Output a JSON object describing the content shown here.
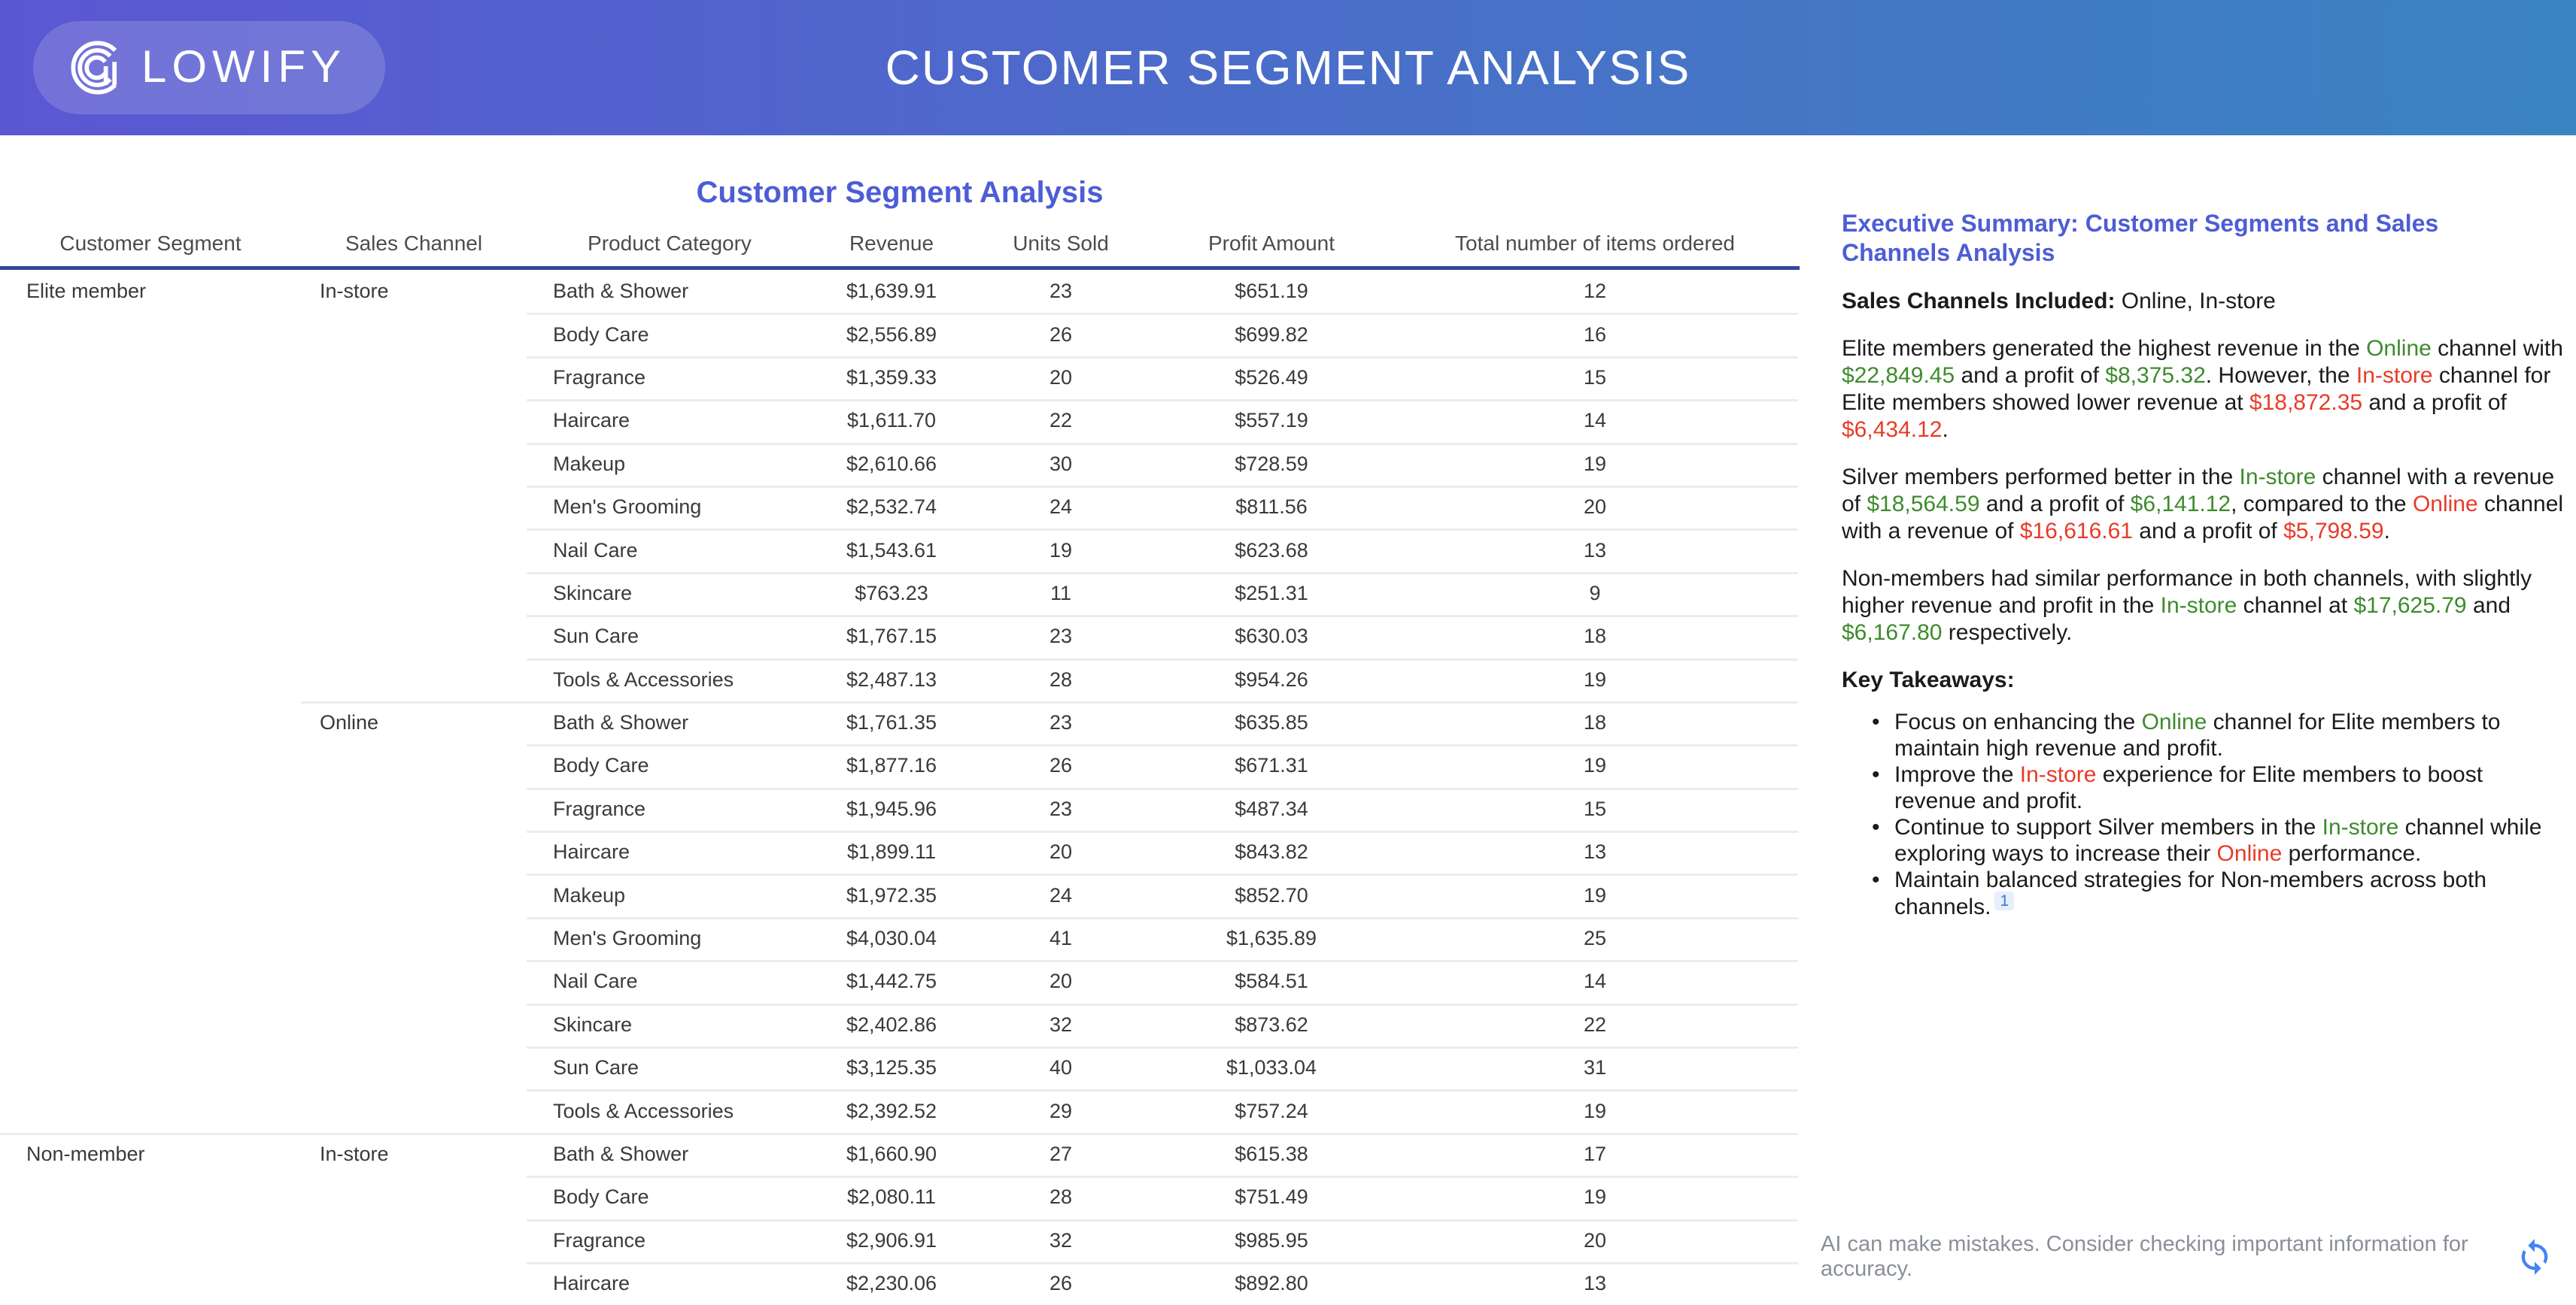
{
  "colors": {
    "header_gradient_start": "#5b57d2",
    "header_gradient_end": "#3a84c1",
    "accent_blue": "#4d5dd5",
    "navy_rule": "#36459b",
    "separator": "#ececec",
    "green": "#3e8b2d",
    "red": "#e83b28",
    "cite_text": "#4170e0",
    "cite_bg": "#e6effc",
    "refresh_blue": "#4285f4"
  },
  "header": {
    "logo_text": "LOWIFY",
    "title": "CUSTOMER SEGMENT ANALYSIS"
  },
  "table": {
    "title": "Customer Segment Analysis",
    "columns": [
      "Customer Segment",
      "Sales Channel",
      "Product Category",
      "Revenue",
      "Units Sold",
      "Profit Amount",
      "Total number of items ordered"
    ],
    "rows": [
      {
        "segment": "Elite member",
        "channel": "In-store",
        "category": "Bath & Shower",
        "revenue": "$1,639.91",
        "units": "23",
        "profit": "$651.19",
        "items": "12",
        "sep": "none"
      },
      {
        "segment": "",
        "channel": "",
        "category": "Body Care",
        "revenue": "$2,556.89",
        "units": "26",
        "profit": "$699.82",
        "items": "16",
        "sep": "cat"
      },
      {
        "segment": "",
        "channel": "",
        "category": "Fragrance",
        "revenue": "$1,359.33",
        "units": "20",
        "profit": "$526.49",
        "items": "15",
        "sep": "cat"
      },
      {
        "segment": "",
        "channel": "",
        "category": "Haircare",
        "revenue": "$1,611.70",
        "units": "22",
        "profit": "$557.19",
        "items": "14",
        "sep": "cat"
      },
      {
        "segment": "",
        "channel": "",
        "category": "Makeup",
        "revenue": "$2,610.66",
        "units": "30",
        "profit": "$728.59",
        "items": "19",
        "sep": "cat"
      },
      {
        "segment": "",
        "channel": "",
        "category": "Men's Grooming",
        "revenue": "$2,532.74",
        "units": "24",
        "profit": "$811.56",
        "items": "20",
        "sep": "cat"
      },
      {
        "segment": "",
        "channel": "",
        "category": "Nail Care",
        "revenue": "$1,543.61",
        "units": "19",
        "profit": "$623.68",
        "items": "13",
        "sep": "cat"
      },
      {
        "segment": "",
        "channel": "",
        "category": "Skincare",
        "revenue": "$763.23",
        "units": "11",
        "profit": "$251.31",
        "items": "9",
        "sep": "cat"
      },
      {
        "segment": "",
        "channel": "",
        "category": "Sun Care",
        "revenue": "$1,767.15",
        "units": "23",
        "profit": "$630.03",
        "items": "18",
        "sep": "cat"
      },
      {
        "segment": "",
        "channel": "",
        "category": "Tools & Accessories",
        "revenue": "$2,487.13",
        "units": "28",
        "profit": "$954.26",
        "items": "19",
        "sep": "cat"
      },
      {
        "segment": "",
        "channel": "Online",
        "category": "Bath & Shower",
        "revenue": "$1,761.35",
        "units": "23",
        "profit": "$635.85",
        "items": "18",
        "sep": "chan"
      },
      {
        "segment": "",
        "channel": "",
        "category": "Body Care",
        "revenue": "$1,877.16",
        "units": "26",
        "profit": "$671.31",
        "items": "19",
        "sep": "cat"
      },
      {
        "segment": "",
        "channel": "",
        "category": "Fragrance",
        "revenue": "$1,945.96",
        "units": "23",
        "profit": "$487.34",
        "items": "15",
        "sep": "cat"
      },
      {
        "segment": "",
        "channel": "",
        "category": "Haircare",
        "revenue": "$1,899.11",
        "units": "20",
        "profit": "$843.82",
        "items": "13",
        "sep": "cat"
      },
      {
        "segment": "",
        "channel": "",
        "category": "Makeup",
        "revenue": "$1,972.35",
        "units": "24",
        "profit": "$852.70",
        "items": "19",
        "sep": "cat"
      },
      {
        "segment": "",
        "channel": "",
        "category": "Men's Grooming",
        "revenue": "$4,030.04",
        "units": "41",
        "profit": "$1,635.89",
        "items": "25",
        "sep": "cat"
      },
      {
        "segment": "",
        "channel": "",
        "category": "Nail Care",
        "revenue": "$1,442.75",
        "units": "20",
        "profit": "$584.51",
        "items": "14",
        "sep": "cat"
      },
      {
        "segment": "",
        "channel": "",
        "category": "Skincare",
        "revenue": "$2,402.86",
        "units": "32",
        "profit": "$873.62",
        "items": "22",
        "sep": "cat"
      },
      {
        "segment": "",
        "channel": "",
        "category": "Sun Care",
        "revenue": "$3,125.35",
        "units": "40",
        "profit": "$1,033.04",
        "items": "31",
        "sep": "cat"
      },
      {
        "segment": "",
        "channel": "",
        "category": "Tools & Accessories",
        "revenue": "$2,392.52",
        "units": "29",
        "profit": "$757.24",
        "items": "19",
        "sep": "cat"
      },
      {
        "segment": "Non-member",
        "channel": "In-store",
        "category": "Bath & Shower",
        "revenue": "$1,660.90",
        "units": "27",
        "profit": "$615.38",
        "items": "17",
        "sep": "seg"
      },
      {
        "segment": "",
        "channel": "",
        "category": "Body Care",
        "revenue": "$2,080.11",
        "units": "28",
        "profit": "$751.49",
        "items": "19",
        "sep": "cat"
      },
      {
        "segment": "",
        "channel": "",
        "category": "Fragrance",
        "revenue": "$2,906.91",
        "units": "32",
        "profit": "$985.95",
        "items": "20",
        "sep": "cat"
      },
      {
        "segment": "",
        "channel": "",
        "category": "Haircare",
        "revenue": "$2,230.06",
        "units": "26",
        "profit": "$892.80",
        "items": "13",
        "sep": "cat"
      }
    ]
  },
  "summary": {
    "title": "Executive Summary: Customer Segments and Sales Channels Analysis",
    "paragraphs": [
      [
        {
          "t": "Sales Channels Included:",
          "b": true
        },
        {
          "t": " Online, In-store"
        }
      ],
      [
        {
          "t": "Elite members generated the highest revenue in the "
        },
        {
          "t": "Online",
          "c": "green"
        },
        {
          "t": " channel with "
        },
        {
          "t": "$22,849.45",
          "c": "green"
        },
        {
          "t": " and a profit of "
        },
        {
          "t": "$8,375.32",
          "c": "green"
        },
        {
          "t": ". However, the "
        },
        {
          "t": "In-store",
          "c": "red"
        },
        {
          "t": " channel for Elite members showed lower revenue at "
        },
        {
          "t": "$18,872.35",
          "c": "red"
        },
        {
          "t": " and a profit of "
        },
        {
          "t": "$6,434.12",
          "c": "red"
        },
        {
          "t": "."
        }
      ],
      [
        {
          "t": "Silver members performed better in the "
        },
        {
          "t": "In-store",
          "c": "green"
        },
        {
          "t": " channel with a revenue of "
        },
        {
          "t": "$18,564.59",
          "c": "green"
        },
        {
          "t": " and a profit of "
        },
        {
          "t": "$6,141.12",
          "c": "green"
        },
        {
          "t": ", compared to the "
        },
        {
          "t": "Online",
          "c": "red"
        },
        {
          "t": " channel with a revenue of "
        },
        {
          "t": "$16,616.61",
          "c": "red"
        },
        {
          "t": " and a profit of "
        },
        {
          "t": "$5,798.59",
          "c": "red"
        },
        {
          "t": "."
        }
      ],
      [
        {
          "t": "Non-members had similar performance in both channels, with slightly higher revenue and profit in the "
        },
        {
          "t": "In-store",
          "c": "green"
        },
        {
          "t": " channel at "
        },
        {
          "t": "$17,625.79",
          "c": "green"
        },
        {
          "t": " and "
        },
        {
          "t": "$6,167.80",
          "c": "green"
        },
        {
          "t": " respectively."
        }
      ]
    ],
    "takeaways_heading": "Key Takeaways:",
    "takeaways": [
      [
        {
          "t": "Focus on enhancing the "
        },
        {
          "t": "Online",
          "c": "green"
        },
        {
          "t": " channel for Elite members to maintain high revenue and profit."
        }
      ],
      [
        {
          "t": "Improve the "
        },
        {
          "t": "In-store",
          "c": "red"
        },
        {
          "t": " experience for Elite members to boost revenue and profit."
        }
      ],
      [
        {
          "t": "Continue to support Silver members in the "
        },
        {
          "t": "In-store",
          "c": "green"
        },
        {
          "t": " channel while exploring ways to increase their "
        },
        {
          "t": "Online",
          "c": "red"
        },
        {
          "t": " performance."
        }
      ],
      [
        {
          "t": "Maintain balanced strategies for Non-members across both channels."
        },
        {
          "t": "1",
          "sup": true
        }
      ]
    ]
  },
  "footer": {
    "disclaimer": "AI can make mistakes. Consider checking important information for accuracy.",
    "refresh_icon": "refresh-icon"
  }
}
